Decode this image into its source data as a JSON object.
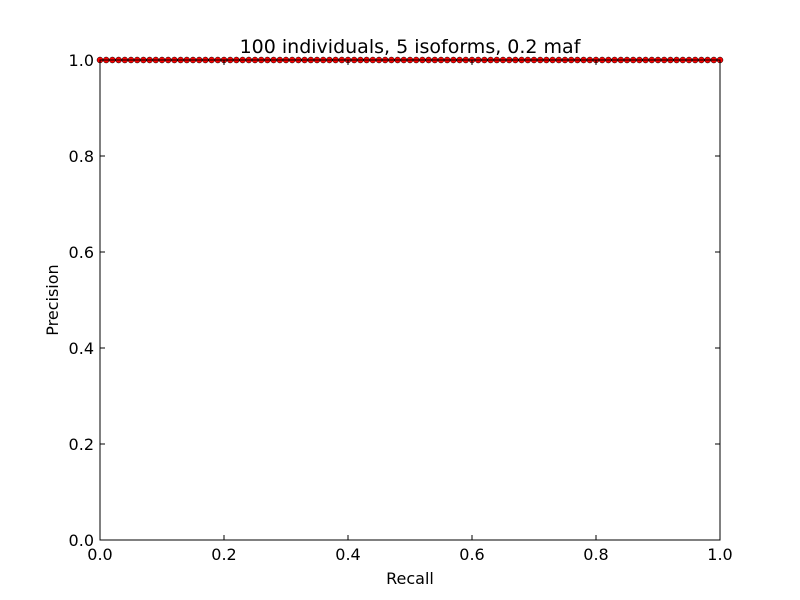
{
  "chart_data": {
    "type": "line",
    "title": "100 individuals, 5 isoforms, 0.2 maf",
    "xlabel": "Recall",
    "ylabel": "Precision",
    "xlim": [
      0.0,
      1.0
    ],
    "ylim": [
      0.0,
      1.0
    ],
    "xticks": [
      "0.0",
      "0.2",
      "0.4",
      "0.6",
      "0.8",
      "1.0"
    ],
    "yticks": [
      "0.0",
      "0.2",
      "0.4",
      "0.6",
      "0.8",
      "1.0"
    ],
    "grid": false,
    "series": [
      {
        "color": "#ff0000",
        "marker": "circle",
        "x": [
          0.0,
          0.01,
          0.02,
          0.03,
          0.04,
          0.05,
          0.06,
          0.07,
          0.08,
          0.09,
          0.1,
          0.11,
          0.12,
          0.13,
          0.14,
          0.15,
          0.16,
          0.17,
          0.18,
          0.19,
          0.2,
          0.21,
          0.22,
          0.23,
          0.24,
          0.25,
          0.26,
          0.27,
          0.28,
          0.29,
          0.3,
          0.31,
          0.32,
          0.33,
          0.34,
          0.35,
          0.36,
          0.37,
          0.38,
          0.39,
          0.4,
          0.41,
          0.42,
          0.43,
          0.44,
          0.45,
          0.46,
          0.47,
          0.48,
          0.49,
          0.5,
          0.51,
          0.52,
          0.53,
          0.54,
          0.55,
          0.56,
          0.57,
          0.58,
          0.59,
          0.6,
          0.61,
          0.62,
          0.63,
          0.64,
          0.65,
          0.66,
          0.67,
          0.68,
          0.69,
          0.7,
          0.71,
          0.72,
          0.73,
          0.74,
          0.75,
          0.76,
          0.77,
          0.78,
          0.79,
          0.8,
          0.81,
          0.82,
          0.83,
          0.84,
          0.85,
          0.86,
          0.87,
          0.88,
          0.89,
          0.9,
          0.91,
          0.92,
          0.93,
          0.94,
          0.95,
          0.96,
          0.97,
          0.98,
          0.99,
          1.0
        ],
        "y": [
          1.0,
          1.0,
          1.0,
          1.0,
          1.0,
          1.0,
          1.0,
          1.0,
          1.0,
          1.0,
          1.0,
          1.0,
          1.0,
          1.0,
          1.0,
          1.0,
          1.0,
          1.0,
          1.0,
          1.0,
          1.0,
          1.0,
          1.0,
          1.0,
          1.0,
          1.0,
          1.0,
          1.0,
          1.0,
          1.0,
          1.0,
          1.0,
          1.0,
          1.0,
          1.0,
          1.0,
          1.0,
          1.0,
          1.0,
          1.0,
          1.0,
          1.0,
          1.0,
          1.0,
          1.0,
          1.0,
          1.0,
          1.0,
          1.0,
          1.0,
          1.0,
          1.0,
          1.0,
          1.0,
          1.0,
          1.0,
          1.0,
          1.0,
          1.0,
          1.0,
          1.0,
          1.0,
          1.0,
          1.0,
          1.0,
          1.0,
          1.0,
          1.0,
          1.0,
          1.0,
          1.0,
          1.0,
          1.0,
          1.0,
          1.0,
          1.0,
          1.0,
          1.0,
          1.0,
          1.0,
          1.0,
          1.0,
          1.0,
          1.0,
          1.0,
          1.0,
          1.0,
          1.0,
          1.0,
          1.0,
          1.0,
          1.0,
          1.0,
          1.0,
          1.0,
          1.0,
          1.0,
          1.0,
          1.0,
          1.0,
          1.0
        ]
      }
    ]
  }
}
